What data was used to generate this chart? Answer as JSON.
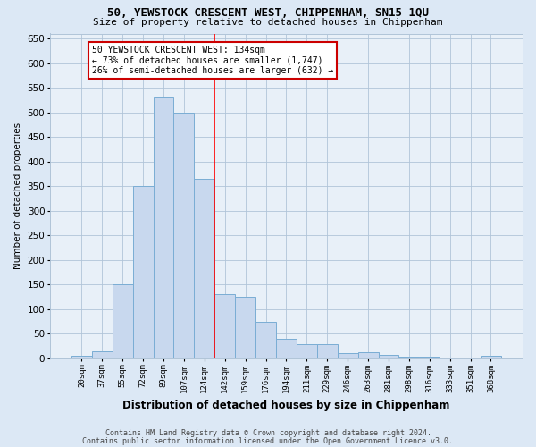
{
  "title1": "50, YEWSTOCK CRESCENT WEST, CHIPPENHAM, SN15 1QU",
  "title2": "Size of property relative to detached houses in Chippenham",
  "xlabel": "Distribution of detached houses by size in Chippenham",
  "ylabel": "Number of detached properties",
  "footnote1": "Contains HM Land Registry data © Crown copyright and database right 2024.",
  "footnote2": "Contains public sector information licensed under the Open Government Licence v3.0.",
  "categories": [
    "20sqm",
    "37sqm",
    "55sqm",
    "72sqm",
    "89sqm",
    "107sqm",
    "124sqm",
    "142sqm",
    "159sqm",
    "176sqm",
    "194sqm",
    "211sqm",
    "229sqm",
    "246sqm",
    "263sqm",
    "281sqm",
    "298sqm",
    "316sqm",
    "333sqm",
    "351sqm",
    "368sqm"
  ],
  "values": [
    5,
    15,
    150,
    350,
    530,
    500,
    365,
    130,
    125,
    75,
    40,
    28,
    28,
    10,
    12,
    7,
    3,
    3,
    2,
    1,
    5
  ],
  "bar_color": "#c8d8ee",
  "bar_edge_color": "#7aadd4",
  "red_line_index": 6,
  "annotation_text": "50 YEWSTOCK CRESCENT WEST: 134sqm\n← 73% of detached houses are smaller (1,747)\n26% of semi-detached houses are larger (632) →",
  "annotation_box_facecolor": "#ffffff",
  "annotation_box_edgecolor": "#cc0000",
  "ylim": [
    0,
    660
  ],
  "yticks": [
    0,
    50,
    100,
    150,
    200,
    250,
    300,
    350,
    400,
    450,
    500,
    550,
    600,
    650
  ],
  "bg_color": "#dce8f5",
  "plot_bg_color": "#e8f0f8",
  "grid_color": "#b0c4d8",
  "title1_fontsize": 9,
  "title2_fontsize": 8
}
